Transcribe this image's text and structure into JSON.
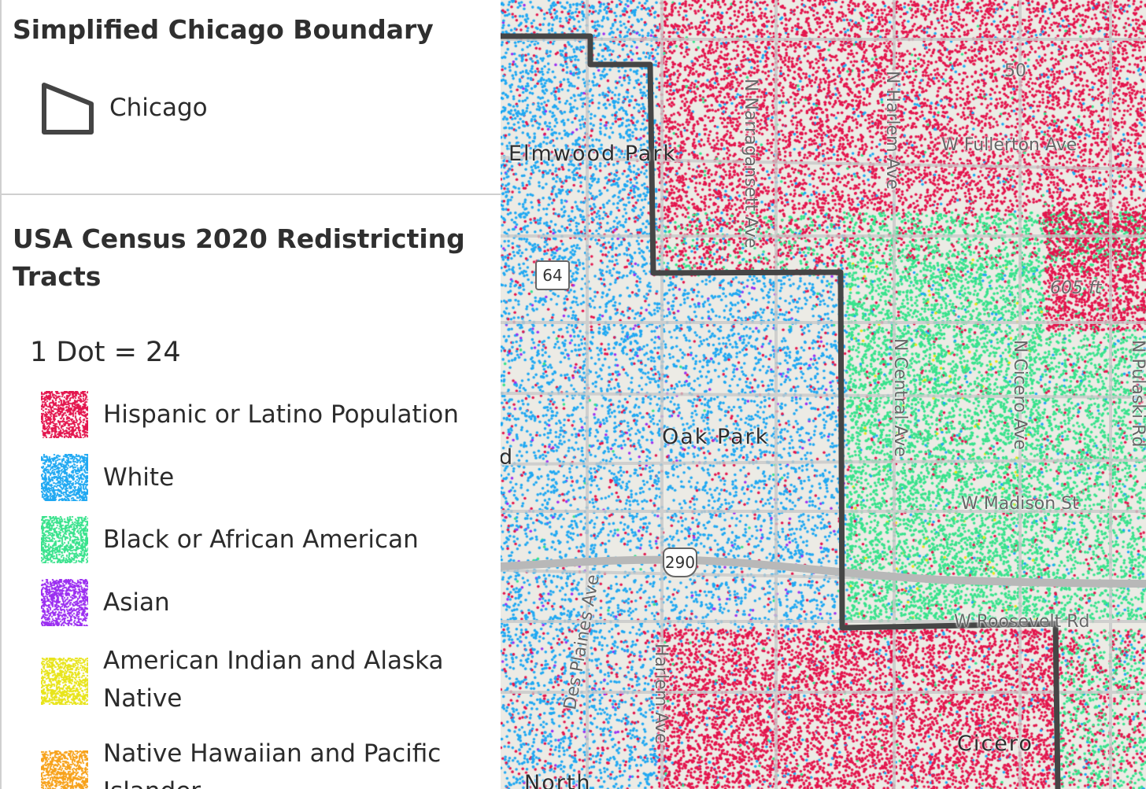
{
  "legend": {
    "boundary": {
      "title": "Simplified Chicago Boundary",
      "item_label": "Chicago",
      "icon": "polygon-outline-icon",
      "stroke_color": "#444444"
    },
    "census": {
      "title": "USA Census 2020 Redistricting Tracts",
      "dot_value": "1 Dot = 24",
      "items": [
        {
          "label": "Hispanic or Latino Population",
          "color": "#e3154d"
        },
        {
          "label": "White",
          "color": "#1fa8f2"
        },
        {
          "label": "Black or African American",
          "color": "#38e28c"
        },
        {
          "label": "Asian",
          "color": "#9b2ef0"
        },
        {
          "label": "American Indian and Alaska Native",
          "color": "#e8e41a"
        },
        {
          "label": "Native Hawaiian and Pacific Islander",
          "color": "#f7a21b"
        }
      ]
    }
  },
  "map": {
    "places": [
      "Elmwood Park",
      "Oak Park",
      "Cicero",
      "North",
      "d"
    ],
    "streets": [
      "N Narragansett Ave",
      "N Harlem Ave",
      "50",
      "W Fullerton Ave",
      "605 ft",
      "N Central Ave",
      "N Cicero Ave",
      "N Pulaski Rd",
      "W Madison St",
      "W Roosevelt Rd",
      "Des Plaines Ave",
      "Harlem Ave"
    ],
    "shields": [
      "64",
      "290"
    ],
    "background_color": "#ecebe5",
    "boundary_color": "#444444"
  }
}
